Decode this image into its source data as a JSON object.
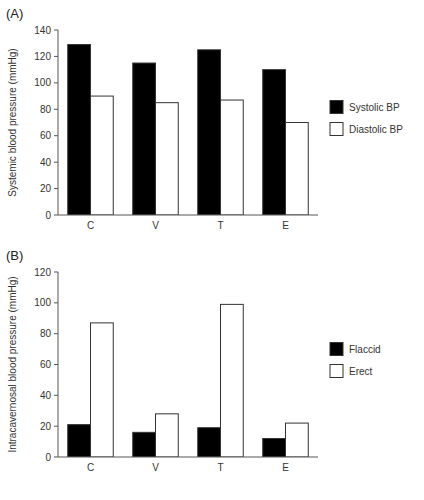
{
  "chart_data": [
    {
      "type": "bar",
      "title": "(A)",
      "categories": [
        "C",
        "V",
        "T",
        "E"
      ],
      "series": [
        {
          "name": "Systolic BP",
          "color": "#000000",
          "values": [
            129,
            115,
            125,
            110
          ]
        },
        {
          "name": "Diastolic BP",
          "color": "#ffffff",
          "values": [
            90,
            85,
            87,
            70
          ]
        }
      ],
      "ylabel": "Systemic blood pressure (mmHg)",
      "ylim": [
        0,
        140
      ],
      "yticks": [
        0,
        20,
        40,
        60,
        80,
        100,
        120,
        140
      ],
      "legend": "right",
      "grid": false
    },
    {
      "type": "bar",
      "title": "(B)",
      "categories": [
        "C",
        "V",
        "T",
        "E"
      ],
      "series": [
        {
          "name": "Flaccid",
          "color": "#000000",
          "values": [
            21,
            16,
            19,
            12
          ]
        },
        {
          "name": "Erect",
          "color": "#ffffff",
          "values": [
            87,
            28,
            99,
            22
          ]
        }
      ],
      "ylabel": "Intracavernosal blood pressure (mmHg)",
      "ylim": [
        0,
        120
      ],
      "yticks": [
        0,
        20,
        40,
        60,
        80,
        100,
        120
      ],
      "legend": "right",
      "grid": false
    }
  ]
}
